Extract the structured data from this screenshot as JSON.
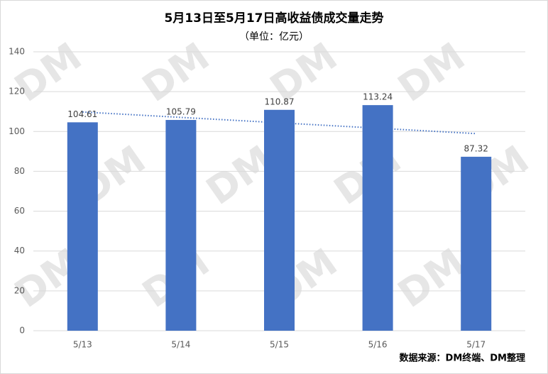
{
  "chart_data": {
    "type": "bar",
    "title": "5月13日至5月17日高收益债成交量走势",
    "subtitle": "（单位：亿元）",
    "categories": [
      "5/13",
      "5/14",
      "5/15",
      "5/16",
      "5/17"
    ],
    "values": [
      104.61,
      105.79,
      110.87,
      113.24,
      87.32
    ],
    "color": "#4472c4",
    "trendline": "linear",
    "ylim": [
      0,
      140
    ],
    "yticks": [
      0,
      20,
      40,
      60,
      80,
      100,
      120,
      140
    ],
    "grid": true,
    "source": "数据来源：DM终端、DM整理",
    "watermark": "DM"
  }
}
